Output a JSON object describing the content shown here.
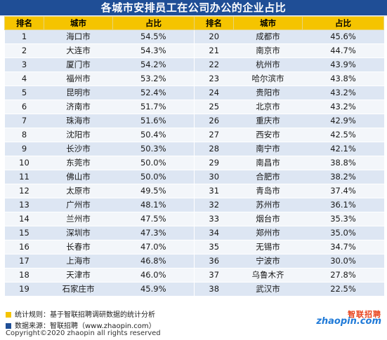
{
  "title": "各城市安排员工在公司办公的企业占比",
  "headers": [
    "排名",
    "城市",
    "占比",
    "排名",
    "城市",
    "占比"
  ],
  "rows": [
    {
      "r1": "1",
      "c1": "海口市",
      "p1": "54.5%",
      "r2": "20",
      "c2": "成都市",
      "p2": "45.6%"
    },
    {
      "r1": "2",
      "c1": "大连市",
      "p1": "54.3%",
      "r2": "21",
      "c2": "南京市",
      "p2": "44.7%"
    },
    {
      "r1": "3",
      "c1": "厦门市",
      "p1": "54.2%",
      "r2": "22",
      "c2": "杭州市",
      "p2": "43.9%"
    },
    {
      "r1": "4",
      "c1": "福州市",
      "p1": "53.2%",
      "r2": "23",
      "c2": "哈尔滨市",
      "p2": "43.8%"
    },
    {
      "r1": "5",
      "c1": "昆明市",
      "p1": "52.4%",
      "r2": "24",
      "c2": "贵阳市",
      "p2": "43.2%"
    },
    {
      "r1": "6",
      "c1": "济南市",
      "p1": "51.7%",
      "r2": "25",
      "c2": "北京市",
      "p2": "43.2%"
    },
    {
      "r1": "7",
      "c1": "珠海市",
      "p1": "51.6%",
      "r2": "26",
      "c2": "重庆市",
      "p2": "42.9%"
    },
    {
      "r1": "8",
      "c1": "沈阳市",
      "p1": "50.4%",
      "r2": "27",
      "c2": "西安市",
      "p2": "42.5%"
    },
    {
      "r1": "9",
      "c1": "长沙市",
      "p1": "50.3%",
      "r2": "28",
      "c2": "南宁市",
      "p2": "42.1%"
    },
    {
      "r1": "10",
      "c1": "东莞市",
      "p1": "50.0%",
      "r2": "29",
      "c2": "南昌市",
      "p2": "38.8%"
    },
    {
      "r1": "11",
      "c1": "佛山市",
      "p1": "50.0%",
      "r2": "30",
      "c2": "合肥市",
      "p2": "38.2%"
    },
    {
      "r1": "12",
      "c1": "太原市",
      "p1": "49.5%",
      "r2": "31",
      "c2": "青岛市",
      "p2": "37.4%"
    },
    {
      "r1": "13",
      "c1": "广州市",
      "p1": "48.1%",
      "r2": "32",
      "c2": "苏州市",
      "p2": "36.1%"
    },
    {
      "r1": "14",
      "c1": "兰州市",
      "p1": "47.5%",
      "r2": "33",
      "c2": "烟台市",
      "p2": "35.3%"
    },
    {
      "r1": "15",
      "c1": "深圳市",
      "p1": "47.3%",
      "r2": "34",
      "c2": "郑州市",
      "p2": "35.0%"
    },
    {
      "r1": "16",
      "c1": "长春市",
      "p1": "47.0%",
      "r2": "35",
      "c2": "无锡市",
      "p2": "34.7%"
    },
    {
      "r1": "17",
      "c1": "上海市",
      "p1": "46.8%",
      "r2": "36",
      "c2": "宁波市",
      "p2": "30.0%"
    },
    {
      "r1": "18",
      "c1": "天津市",
      "p1": "46.0%",
      "r2": "37",
      "c2": "乌鲁木齐",
      "p2": "27.8%"
    },
    {
      "r1": "19",
      "c1": "石家庄市",
      "p1": "45.9%",
      "r2": "38",
      "c2": "武汉市",
      "p2": "22.5%"
    }
  ],
  "footer": {
    "rule": "统计规则：基于智联招聘调研数据的统计分析",
    "source": "数据来源：智联招聘（www.zhaopin.com）",
    "copyright": "Copyright©2020 zhaopin all rights reserved",
    "rule_marker_color": "#f5c400",
    "source_marker_color": "#1f4e96"
  },
  "logo": {
    "top": "智联招聘",
    "bottom": "zhaopin.com"
  },
  "colors": {
    "title_bg": "#1f4e96",
    "header_bg": "#f5c400",
    "row_odd": "#dde6f3",
    "row_even": "#f3f6fa"
  }
}
